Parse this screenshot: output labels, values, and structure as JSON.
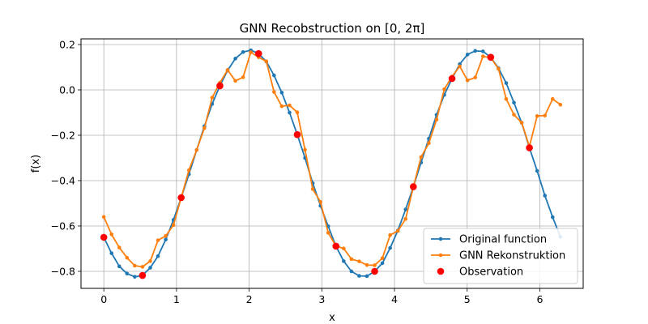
{
  "chart_data": {
    "type": "line",
    "title": "GNN Recobstruction on [0, 2π]",
    "xlabel": "x",
    "ylabel": "f(x)",
    "xlim": [
      -0.314,
      6.597
    ],
    "ylim": [
      -0.875,
      0.225
    ],
    "x_ticks": [
      0,
      1,
      2,
      3,
      4,
      5,
      6
    ],
    "x_tick_labels": [
      "0",
      "1",
      "2",
      "3",
      "4",
      "5",
      "6"
    ],
    "y_ticks": [
      -0.8,
      -0.6,
      -0.4,
      -0.2,
      0.0,
      0.2
    ],
    "y_tick_labels": [
      "−0.8",
      "−0.6",
      "−0.4",
      "−0.2",
      "0.0",
      "0.2"
    ],
    "grid": true,
    "legend_position": "lower-right",
    "series": [
      {
        "name": "Original function",
        "color": "#1f77b4",
        "kind": "line-markers",
        "x": [
          0,
          0.1065,
          0.213,
          0.3195,
          0.4259,
          0.5324,
          0.6389,
          0.7454,
          0.8519,
          0.9584,
          1.0649,
          1.1714,
          1.2778,
          1.3843,
          1.4908,
          1.5973,
          1.7038,
          1.8103,
          1.9168,
          2.0233,
          2.1298,
          2.2362,
          2.3427,
          2.4492,
          2.5557,
          2.6622,
          2.7687,
          2.8752,
          2.9817,
          3.0881,
          3.1946,
          3.3011,
          3.4076,
          3.5141,
          3.6206,
          3.7271,
          3.8336,
          3.9401,
          4.0465,
          4.153,
          4.2595,
          4.366,
          4.4725,
          4.579,
          4.6855,
          4.792,
          4.8984,
          5.0049,
          5.1114,
          5.2179,
          5.3244,
          5.4309,
          5.5374,
          5.6439,
          5.7504,
          5.8568,
          5.9633,
          6.0698,
          6.1763,
          6.2832
        ],
        "y": [
          -0.65,
          -0.72,
          -0.778,
          -0.81,
          -0.824,
          -0.818,
          -0.784,
          -0.733,
          -0.66,
          -0.573,
          -0.475,
          -0.372,
          -0.265,
          -0.16,
          -0.062,
          0.018,
          0.086,
          0.138,
          0.167,
          0.175,
          0.16,
          0.125,
          0.064,
          -0.012,
          -0.1,
          -0.197,
          -0.3,
          -0.411,
          -0.511,
          -0.601,
          -0.689,
          -0.755,
          -0.8,
          -0.82,
          -0.821,
          -0.8,
          -0.764,
          -0.697,
          -0.62,
          -0.527,
          -0.427,
          -0.32,
          -0.215,
          -0.11,
          -0.022,
          0.05,
          0.114,
          0.156,
          0.172,
          0.17,
          0.144,
          0.096,
          0.03,
          -0.056,
          -0.145,
          -0.255,
          -0.357,
          -0.466,
          -0.561,
          -0.648
        ]
      },
      {
        "name": "GNN Rekonstruktion",
        "color": "#ff7f0e",
        "kind": "line-markers",
        "x": [
          0,
          0.1065,
          0.213,
          0.3195,
          0.4259,
          0.5324,
          0.6389,
          0.7454,
          0.8519,
          0.9584,
          1.0649,
          1.1714,
          1.2778,
          1.3843,
          1.4908,
          1.5973,
          1.7038,
          1.8103,
          1.9168,
          2.0233,
          2.1298,
          2.2362,
          2.3427,
          2.4492,
          2.5557,
          2.6622,
          2.7687,
          2.8752,
          2.9817,
          3.0881,
          3.1946,
          3.3011,
          3.4076,
          3.5141,
          3.6206,
          3.7271,
          3.8336,
          3.9401,
          4.0465,
          4.153,
          4.2595,
          4.366,
          4.4725,
          4.579,
          4.6855,
          4.792,
          4.8984,
          5.0049,
          5.1114,
          5.2179,
          5.3244,
          5.4309,
          5.5374,
          5.6439,
          5.7504,
          5.8568,
          5.9633,
          6.0698,
          6.1763,
          6.2832
        ],
        "y": [
          -0.56,
          -0.637,
          -0.695,
          -0.74,
          -0.775,
          -0.78,
          -0.755,
          -0.663,
          -0.644,
          -0.596,
          -0.475,
          -0.354,
          -0.265,
          -0.168,
          -0.034,
          0.032,
          0.088,
          0.04,
          0.056,
          0.166,
          0.144,
          0.126,
          -0.009,
          -0.072,
          -0.068,
          -0.099,
          -0.264,
          -0.437,
          -0.494,
          -0.63,
          -0.688,
          -0.699,
          -0.746,
          -0.756,
          -0.772,
          -0.773,
          -0.742,
          -0.64,
          -0.622,
          -0.569,
          -0.428,
          -0.296,
          -0.235,
          -0.131,
          0.003,
          0.059,
          0.104,
          0.042,
          0.055,
          0.148,
          0.142,
          0.093,
          -0.04,
          -0.109,
          -0.144,
          -0.249,
          -0.115,
          -0.113,
          -0.04,
          -0.065
        ]
      },
      {
        "name": "Observation",
        "color": "#ff0000",
        "kind": "scatter",
        "x": [
          0,
          0.5324,
          1.0649,
          1.5973,
          2.1298,
          2.6622,
          3.1946,
          3.7271,
          4.2595,
          4.792,
          5.3244,
          5.8568
        ],
        "y": [
          -0.65,
          -0.818,
          -0.475,
          0.018,
          0.16,
          -0.197,
          -0.689,
          -0.8,
          -0.427,
          0.05,
          0.144,
          -0.255
        ]
      }
    ]
  }
}
